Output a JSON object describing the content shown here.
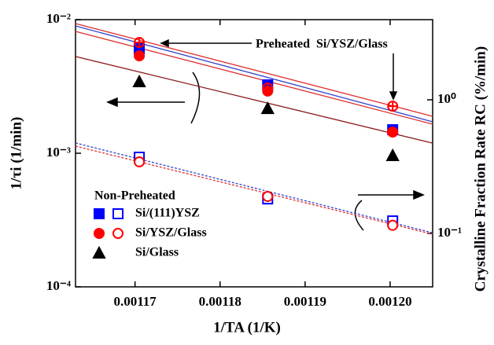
{
  "chart_data": {
    "type": "scatter",
    "x_label": "1/TA (1/K)",
    "y_label": "1/τi (1/min)",
    "y2_label": "Crystalline Fraction Rate RC (%/min)",
    "x": [
      0.0011705,
      0.0011856,
      0.0012003
    ],
    "xlim": [
      0.001163,
      0.001205
    ],
    "xticks": [
      0.00117,
      0.00118,
      0.00119,
      {
        "value": 0.0012,
        "label": "0.00120"
      }
    ],
    "ylim": [
      0.0001,
      0.01
    ],
    "yscale": "log",
    "yticks": [
      {
        "value": 0.0001,
        "label": "10⁻⁴"
      },
      {
        "value": 0.001,
        "label": "10⁻³"
      },
      {
        "value": 0.01,
        "label": "10⁻²"
      }
    ],
    "y2lim": [
      0.0398,
      3.98
    ],
    "y2scale": "log",
    "y2ticks": [
      {
        "value": 0.1,
        "label": "10⁻¹"
      },
      {
        "value": 1,
        "label": "10⁰"
      }
    ],
    "legend_title": "Non-Preheated",
    "series": [
      {
        "name": "Si/(111)YSZ",
        "color": "#0000ff",
        "marker": "square",
        "values": [
          0.00605,
          0.00325,
          0.0015
        ],
        "y2_values": [
          0.372,
          0.181,
          0.124
        ]
      },
      {
        "name": "Si/YSZ/Glass",
        "color": "#ff0000",
        "marker": "circle",
        "values": [
          0.00536,
          0.00292,
          0.00144
        ],
        "y2_values": [
          0.343,
          0.189,
          0.115
        ]
      },
      {
        "name": "Si/Glass",
        "color": "#000000",
        "marker": "triangle",
        "values": [
          0.00343,
          0.00216,
          0.00096
        ]
      }
    ],
    "preheated": {
      "name": "Preheated  Si/YSZ/Glass",
      "color": "#ff0000",
      "marker": "crossed-circle",
      "values": [
        0.00675,
        0.00308,
        0.00225
      ]
    },
    "fits": [
      {
        "color": "#3344cc",
        "axis": "y",
        "dash": false,
        "values": [
          0.00897,
          0.00172
        ]
      },
      {
        "color": "#e03030",
        "axis": "y",
        "dash": false,
        "values": [
          0.00935,
          0.00189
        ]
      },
      {
        "color": "#e03030",
        "axis": "y",
        "dash": false,
        "values": [
          0.00816,
          0.00165
        ]
      },
      {
        "color": "#8b1a1a",
        "axis": "y",
        "dash": false,
        "values": [
          0.0053,
          0.00119
        ]
      },
      {
        "color": "#3344cc",
        "axis": "y2",
        "dash": true,
        "values": [
          0.475,
          0.101
        ]
      },
      {
        "color": "#e03030",
        "axis": "y2",
        "dash": true,
        "values": [
          0.45,
          0.0986
        ]
      }
    ]
  }
}
